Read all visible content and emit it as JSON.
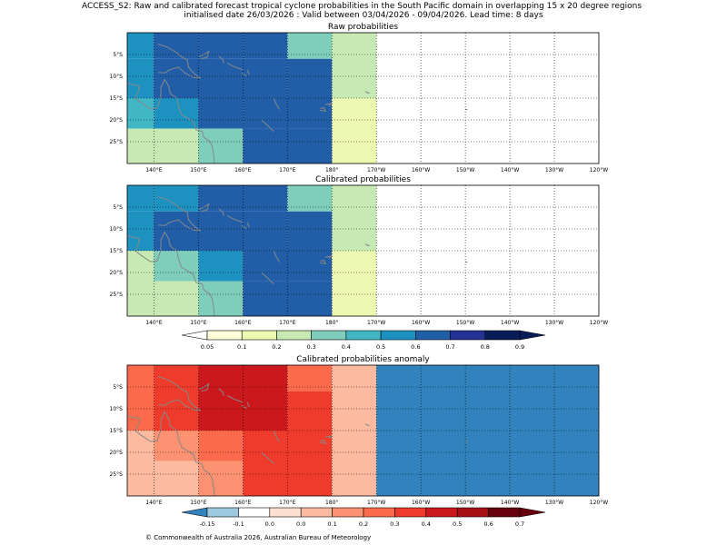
{
  "suptitle": {
    "line1": "ACCESS_S2: Raw and calibrated forecast tropical cyclone probabilities in the South Pacific domain in overlapping 15 x 20 degree regions",
    "line2": "initialised date 26/03/2026 :  Valid between 03/04/2026 - 09/04/2026. Lead time: 8 days"
  },
  "footer": "© Commonwealth of Australia 2026, Australian Bureau of Meteorology",
  "colors": {
    "land": "#888888",
    "grid": "#000000",
    "nan": "#ffffff",
    "prob_palette": [
      "#ffffff",
      "#ffffd9",
      "#edf8b1",
      "#c7e9b4",
      "#7fcdbb",
      "#41b6c4",
      "#1d91c0",
      "#225ea8",
      "#253494",
      "#081d58"
    ],
    "anom_palette": [
      "#3182bd",
      "#9ecae1",
      "#ffffff",
      "#fee0d2",
      "#fcbba1",
      "#fc9272",
      "#fb6a4a",
      "#ef3b2c",
      "#cb181d",
      "#a50f15",
      "#67000d"
    ]
  },
  "chart_data": [
    {
      "type": "heatmap",
      "title": "Raw probabilities",
      "colorbar_ref": "probability",
      "xlim": [
        134,
        240
      ],
      "ylim": [
        -30,
        0
      ],
      "x_ticks": [
        140,
        150,
        160,
        170,
        180,
        190,
        200,
        210,
        220,
        230,
        240
      ],
      "x_tick_labels": [
        "140°E",
        "150°E",
        "160°E",
        "170°E",
        "180°",
        "170°W",
        "160°W",
        "150°W",
        "140°W",
        "130°W",
        "120°W"
      ],
      "y_ticks": [
        -5,
        -10,
        -15,
        -20,
        -25
      ],
      "y_tick_labels": [
        "5°S",
        "10°S",
        "15°S",
        "20°S",
        "25°S"
      ],
      "grid": true,
      "cells": [
        {
          "lon": [
            134,
            140
          ],
          "lat": [
            -6,
            0
          ],
          "value": 0.55
        },
        {
          "lon": [
            140,
            150
          ],
          "lat": [
            -6,
            0
          ],
          "value": 0.6
        },
        {
          "lon": [
            150,
            160
          ],
          "lat": [
            -6,
            0
          ],
          "value": 0.65
        },
        {
          "lon": [
            160,
            170
          ],
          "lat": [
            -6,
            0
          ],
          "value": 0.6
        },
        {
          "lon": [
            170,
            180
          ],
          "lat": [
            -6,
            0
          ],
          "value": 0.38
        },
        {
          "lon": [
            180,
            190
          ],
          "lat": [
            -30,
            0
          ],
          "value": 0.22
        },
        {
          "lon": [
            134,
            140
          ],
          "lat": [
            -15,
            -6
          ],
          "value": 0.55
        },
        {
          "lon": [
            140,
            170
          ],
          "lat": [
            -15,
            -6
          ],
          "value": 0.65
        },
        {
          "lon": [
            170,
            180
          ],
          "lat": [
            -15,
            -6
          ],
          "value": 0.6
        },
        {
          "lon": [
            134,
            140
          ],
          "lat": [
            -22,
            -15
          ],
          "value": 0.4
        },
        {
          "lon": [
            140,
            150
          ],
          "lat": [
            -22,
            -15
          ],
          "value": 0.55
        },
        {
          "lon": [
            150,
            160
          ],
          "lat": [
            -22,
            -15
          ],
          "value": 0.6
        },
        {
          "lon": [
            160,
            180
          ],
          "lat": [
            -22,
            -15
          ],
          "value": 0.65
        },
        {
          "lon": [
            180,
            190
          ],
          "lat": [
            -30,
            -15
          ],
          "value": 0.15
        },
        {
          "lon": [
            134,
            150
          ],
          "lat": [
            -30,
            -22
          ],
          "value": 0.22
        },
        {
          "lon": [
            150,
            160
          ],
          "lat": [
            -30,
            -22
          ],
          "value": 0.38
        },
        {
          "lon": [
            160,
            180
          ],
          "lat": [
            -30,
            -22
          ],
          "value": 0.65
        }
      ]
    },
    {
      "type": "heatmap",
      "title": "Calibrated probabilities",
      "colorbar_ref": "probability",
      "xlim": [
        134,
        240
      ],
      "ylim": [
        -30,
        0
      ],
      "x_ticks": [
        140,
        150,
        160,
        170,
        180,
        190,
        200,
        210,
        220,
        230,
        240
      ],
      "x_tick_labels": [
        "140°E",
        "150°E",
        "160°E",
        "170°E",
        "180°",
        "170°W",
        "160°W",
        "150°W",
        "140°W",
        "130°W",
        "120°W"
      ],
      "y_ticks": [
        -5,
        -10,
        -15,
        -20,
        -25
      ],
      "y_tick_labels": [
        "5°S",
        "10°S",
        "15°S",
        "20°S",
        "25°S"
      ],
      "grid": true,
      "cells": [
        {
          "lon": [
            134,
            140
          ],
          "lat": [
            -6,
            0
          ],
          "value": 0.55
        },
        {
          "lon": [
            140,
            150
          ],
          "lat": [
            -6,
            0
          ],
          "value": 0.55
        },
        {
          "lon": [
            150,
            170
          ],
          "lat": [
            -6,
            0
          ],
          "value": 0.65
        },
        {
          "lon": [
            170,
            180
          ],
          "lat": [
            -6,
            0
          ],
          "value": 0.38
        },
        {
          "lon": [
            180,
            190
          ],
          "lat": [
            -15,
            0
          ],
          "value": 0.22
        },
        {
          "lon": [
            134,
            140
          ],
          "lat": [
            -15,
            -6
          ],
          "value": 0.55
        },
        {
          "lon": [
            140,
            170
          ],
          "lat": [
            -15,
            -6
          ],
          "value": 0.65
        },
        {
          "lon": [
            170,
            180
          ],
          "lat": [
            -15,
            -6
          ],
          "value": 0.6
        },
        {
          "lon": [
            134,
            140
          ],
          "lat": [
            -22,
            -15
          ],
          "value": 0.22
        },
        {
          "lon": [
            140,
            150
          ],
          "lat": [
            -22,
            -15
          ],
          "value": 0.38
        },
        {
          "lon": [
            150,
            160
          ],
          "lat": [
            -22,
            -15
          ],
          "value": 0.55
        },
        {
          "lon": [
            160,
            180
          ],
          "lat": [
            -22,
            -15
          ],
          "value": 0.6
        },
        {
          "lon": [
            180,
            190
          ],
          "lat": [
            -30,
            -15
          ],
          "value": 0.15
        },
        {
          "lon": [
            134,
            150
          ],
          "lat": [
            -30,
            -22
          ],
          "value": 0.22
        },
        {
          "lon": [
            150,
            160
          ],
          "lat": [
            -30,
            -22
          ],
          "value": 0.38
        },
        {
          "lon": [
            160,
            180
          ],
          "lat": [
            -30,
            -22
          ],
          "value": 0.6
        }
      ]
    },
    {
      "type": "heatmap",
      "title": "Calibrated probabilities anomaly",
      "colorbar_ref": "anomaly",
      "xlim": [
        134,
        240
      ],
      "ylim": [
        -30,
        0
      ],
      "x_ticks": [
        140,
        150,
        160,
        170,
        180,
        190,
        200,
        210,
        220,
        230,
        240
      ],
      "x_tick_labels": [
        "140°E",
        "150°E",
        "160°E",
        "170°E",
        "180°",
        "170°W",
        "160°W",
        "150°W",
        "140°W",
        "130°W",
        "120°W"
      ],
      "y_ticks": [
        -5,
        -10,
        -15,
        -20,
        -25
      ],
      "y_tick_labels": [
        "5°S",
        "10°S",
        "15°S",
        "20°S",
        "25°S"
      ],
      "grid": true,
      "cells": [
        {
          "lon": [
            134,
            140
          ],
          "lat": [
            -15,
            0
          ],
          "value": 0.25
        },
        {
          "lon": [
            140,
            150
          ],
          "lat": [
            -15,
            0
          ],
          "value": 0.35
        },
        {
          "lon": [
            150,
            170
          ],
          "lat": [
            -15,
            0
          ],
          "value": 0.45
        },
        {
          "lon": [
            170,
            180
          ],
          "lat": [
            -6,
            0
          ],
          "value": 0.25
        },
        {
          "lon": [
            170,
            180
          ],
          "lat": [
            -15,
            -6
          ],
          "value": 0.35
        },
        {
          "lon": [
            180,
            190
          ],
          "lat": [
            -15,
            0
          ],
          "value": 0.0
        },
        {
          "lon": [
            190,
            240
          ],
          "lat": [
            -30,
            0
          ],
          "value": -0.2
        },
        {
          "lon": [
            134,
            140
          ],
          "lat": [
            -22,
            -15
          ],
          "value": 0.05
        },
        {
          "lon": [
            140,
            150
          ],
          "lat": [
            -22,
            -15
          ],
          "value": 0.15
        },
        {
          "lon": [
            150,
            160
          ],
          "lat": [
            -22,
            -15
          ],
          "value": 0.25
        },
        {
          "lon": [
            160,
            180
          ],
          "lat": [
            -30,
            -15
          ],
          "value": 0.35
        },
        {
          "lon": [
            180,
            190
          ],
          "lat": [
            -30,
            -15
          ],
          "value": 0.05
        },
        {
          "lon": [
            134,
            150
          ],
          "lat": [
            -30,
            -22
          ],
          "value": 0.0
        },
        {
          "lon": [
            150,
            160
          ],
          "lat": [
            -30,
            -22
          ],
          "value": 0.15
        }
      ]
    }
  ],
  "colorbars": {
    "probability": {
      "bounds": [
        0.05,
        0.1,
        0.2,
        0.3,
        0.4,
        0.5,
        0.6,
        0.7,
        0.8,
        0.9
      ],
      "labels": [
        "0.05",
        "0.1",
        "0.2",
        "0.3",
        "0.4",
        "0.5",
        "0.6",
        "0.7",
        "0.8",
        "0.9"
      ],
      "under_color": "#ffffff",
      "over_color": "#081d58"
    },
    "anomaly": {
      "bounds": [
        -0.15,
        -0.1,
        0.0,
        0.0,
        0.1,
        0.2,
        0.3,
        0.4,
        0.5,
        0.6,
        0.7
      ],
      "labels": [
        "-0.15",
        "-0.1",
        "0.0",
        "0.0",
        "0.1",
        "0.2",
        "0.3",
        "0.4",
        "0.5",
        "0.6",
        "0.7"
      ],
      "under_color": "#3182bd",
      "over_color": "#67000d"
    }
  },
  "map_features": {
    "coastlines": [
      [
        [
          134,
          -11.5
        ],
        [
          135.5,
          -12
        ],
        [
          136.8,
          -12.2
        ],
        [
          136.5,
          -13.5
        ],
        [
          135.8,
          -15
        ],
        [
          137,
          -16
        ],
        [
          139.2,
          -17.5
        ],
        [
          140.7,
          -17.4
        ],
        [
          141.5,
          -15
        ],
        [
          141.6,
          -12.5
        ],
        [
          142.4,
          -10.7
        ],
        [
          143.3,
          -12.2
        ],
        [
          143.7,
          -14
        ],
        [
          145.2,
          -15
        ],
        [
          145.5,
          -16.8
        ],
        [
          146.2,
          -18.8
        ],
        [
          147.5,
          -19.6
        ],
        [
          148.8,
          -20.4
        ],
        [
          149.5,
          -22.3
        ],
        [
          150.8,
          -22.6
        ],
        [
          151.2,
          -24
        ],
        [
          152.5,
          -24.9
        ],
        [
          153.1,
          -26
        ],
        [
          153.4,
          -28
        ],
        [
          153.6,
          -30
        ]
      ],
      [
        [
          140.9,
          -2.6
        ],
        [
          143,
          -3.3
        ],
        [
          145,
          -4.5
        ],
        [
          146,
          -5.4
        ],
        [
          147.5,
          -6.2
        ],
        [
          147.8,
          -8
        ],
        [
          149.3,
          -9.6
        ],
        [
          150.5,
          -10.4
        ],
        [
          149,
          -10.3
        ],
        [
          147,
          -9.3
        ],
        [
          145.5,
          -7.9
        ],
        [
          143.5,
          -8.5
        ],
        [
          142.5,
          -9.2
        ],
        [
          141,
          -9.1
        ]
      ],
      [
        [
          150.2,
          -5.5
        ],
        [
          151.5,
          -4.9
        ],
        [
          152.3,
          -4.3
        ],
        [
          152,
          -5.6
        ],
        [
          150.6,
          -6
        ]
      ],
      [
        [
          154.6,
          -5.4
        ],
        [
          155.5,
          -6.2
        ],
        [
          155.7,
          -7
        ]
      ],
      [
        [
          156.5,
          -7
        ],
        [
          158,
          -7.8
        ],
        [
          160,
          -8.5
        ]
      ],
      [
        [
          159.7,
          -9.3
        ],
        [
          160.8,
          -9.9
        ]
      ],
      [
        [
          161,
          -8.5
        ],
        [
          161.4,
          -9.6
        ]
      ],
      [
        [
          167,
          -15
        ],
        [
          167.3,
          -16
        ],
        [
          168.2,
          -17.6
        ]
      ],
      [
        [
          164.2,
          -20.1
        ],
        [
          165.5,
          -21.2
        ],
        [
          166.5,
          -22.2
        ],
        [
          167,
          -22.6
        ]
      ],
      [
        [
          177.3,
          -17.8
        ],
        [
          178.6,
          -18
        ],
        [
          178.2,
          -17.2
        ],
        [
          177.4,
          -17.4
        ]
      ],
      [
        [
          178.5,
          -16.5
        ],
        [
          180,
          -16.2
        ],
        [
          179.3,
          -16.8
        ]
      ],
      [
        [
          187.5,
          -13.5
        ],
        [
          188.5,
          -13.9
        ],
        [
          187.8,
          -13.7
        ]
      ],
      [
        [
          210,
          -17.5
        ],
        [
          210.5,
          -17.7
        ]
      ]
    ]
  }
}
